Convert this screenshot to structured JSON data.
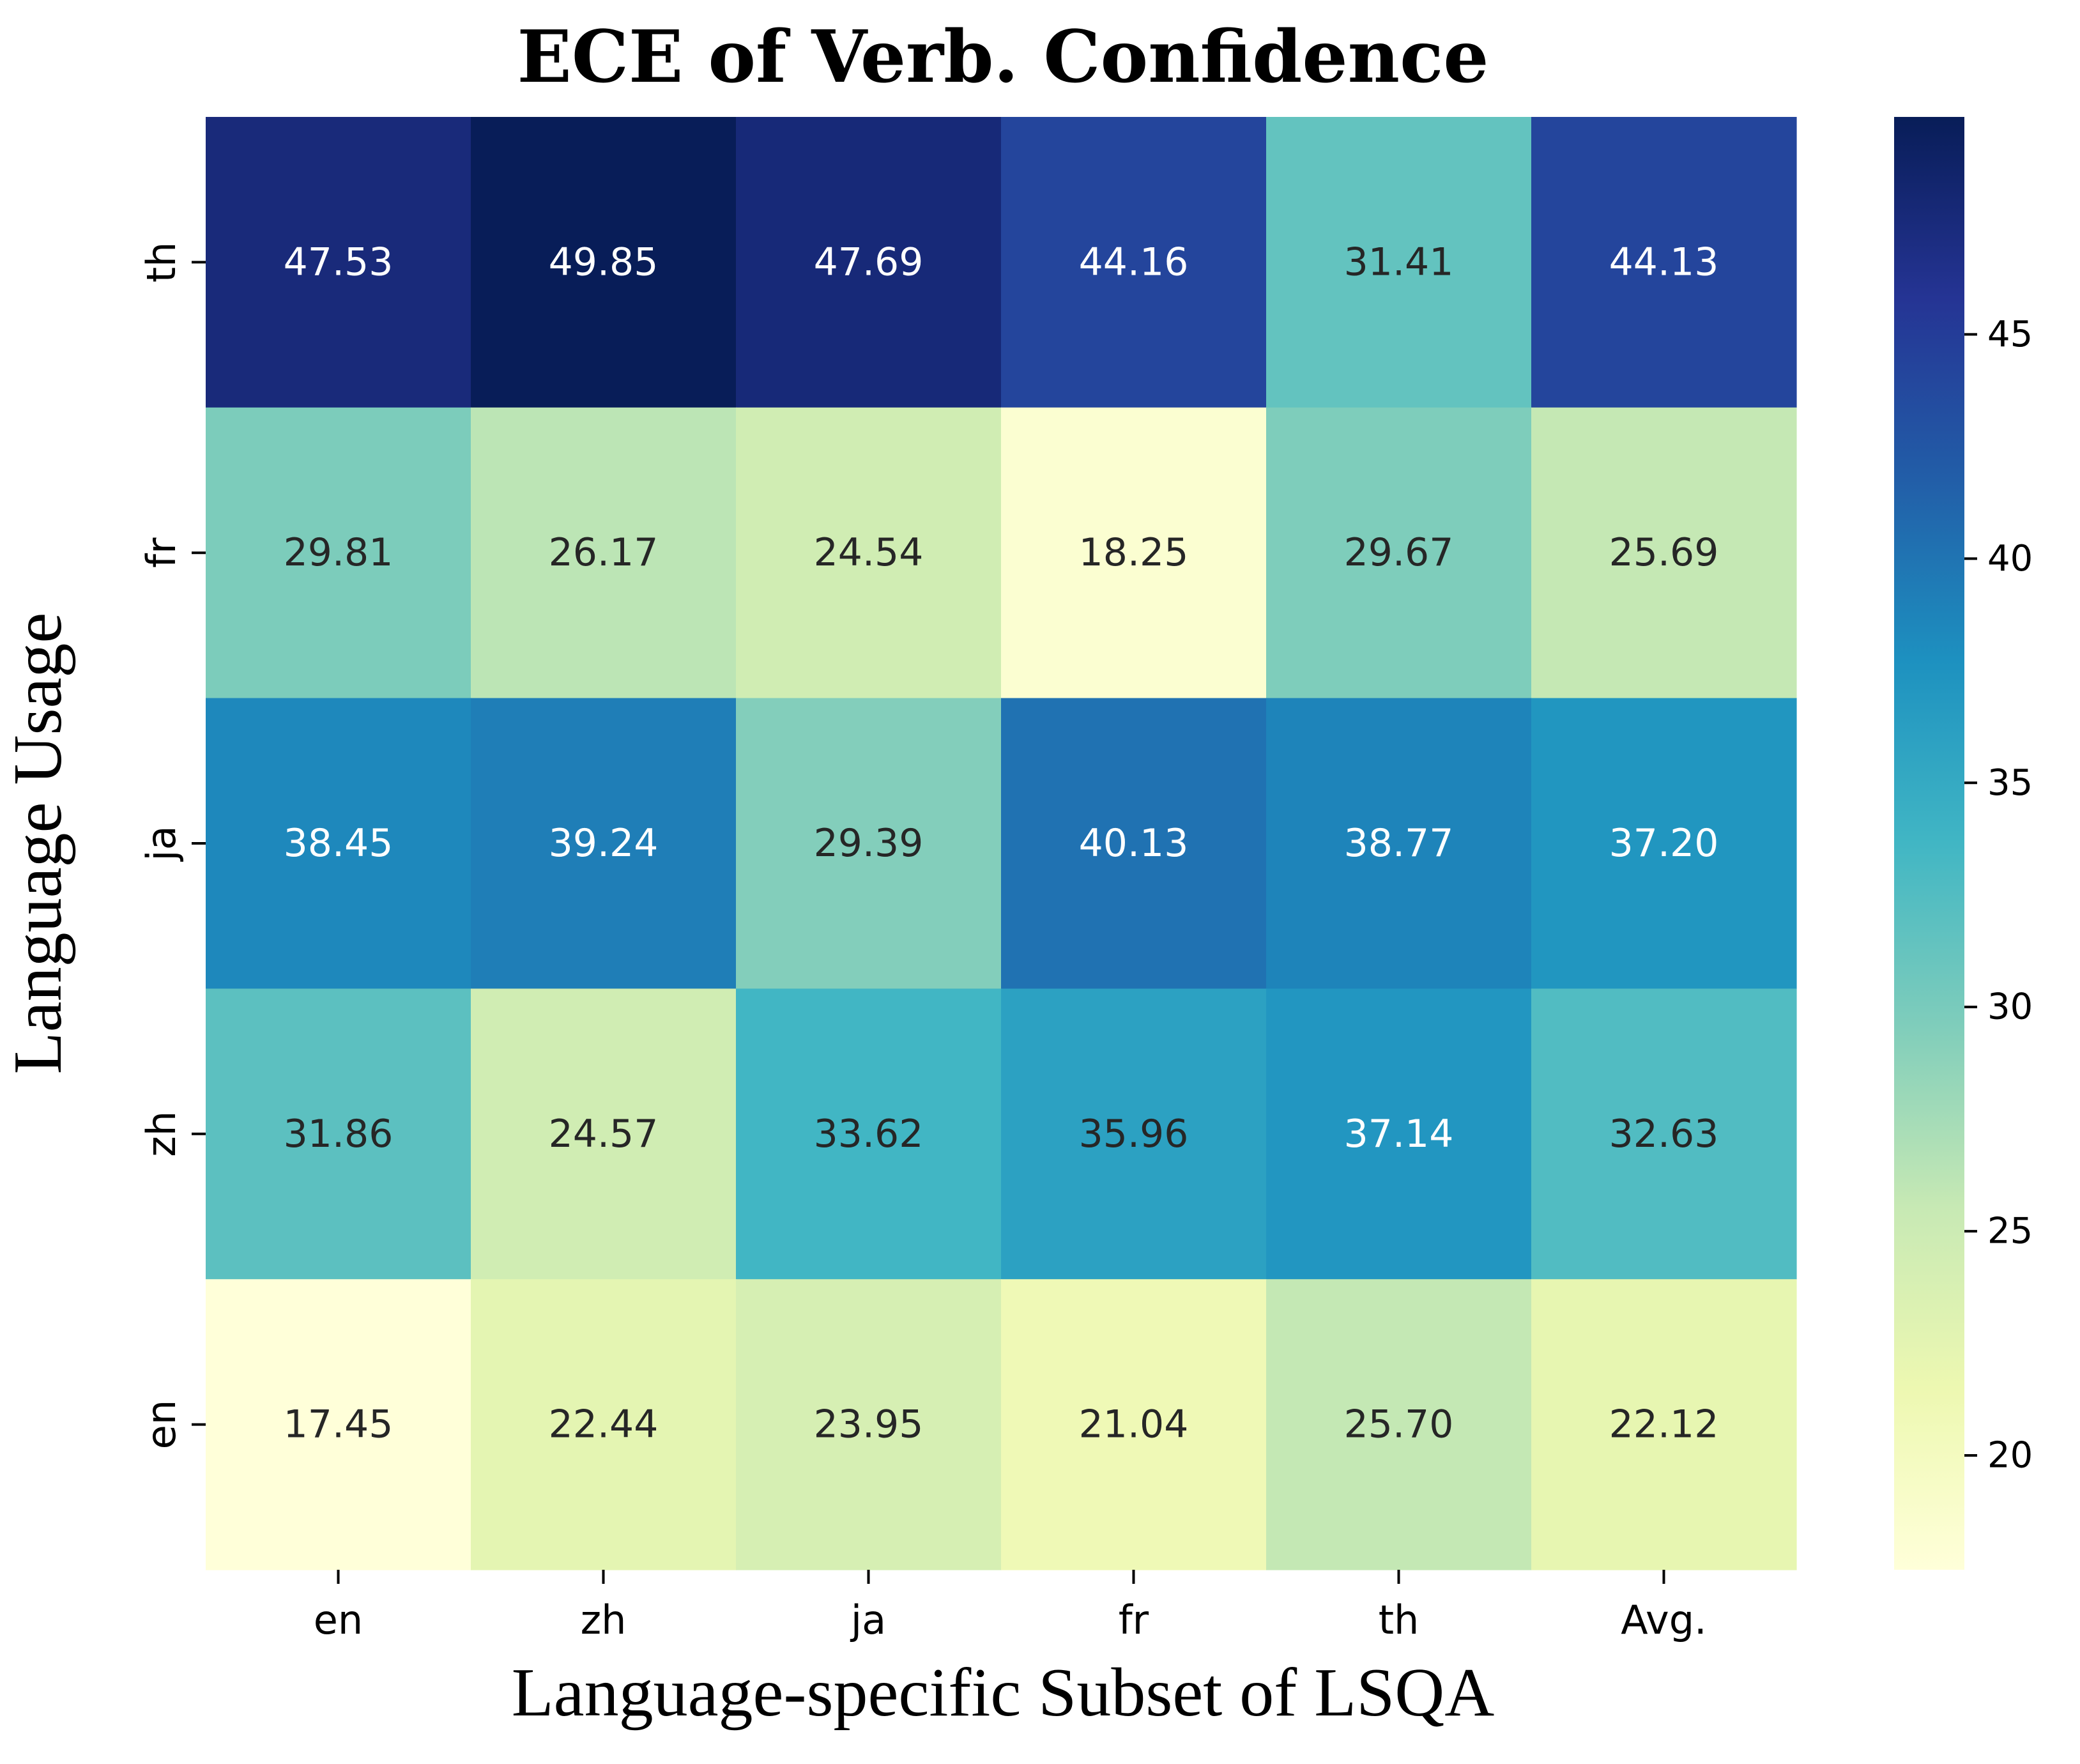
{
  "chart_data": {
    "type": "heatmap",
    "title": "ECE of Verb. Confidence",
    "xlabel": "Language-specific Subset of LSQA",
    "ylabel": "Language Usage",
    "x_categories": [
      "en",
      "zh",
      "ja",
      "fr",
      "th",
      "Avg."
    ],
    "y_categories": [
      "th",
      "fr",
      "ja",
      "zh",
      "en"
    ],
    "values": [
      [
        47.53,
        49.85,
        47.69,
        44.16,
        31.41,
        44.13
      ],
      [
        29.81,
        26.17,
        24.54,
        18.25,
        29.67,
        25.69
      ],
      [
        38.45,
        39.24,
        29.39,
        40.13,
        38.77,
        37.2
      ],
      [
        31.86,
        24.57,
        33.62,
        35.96,
        37.14,
        32.63
      ],
      [
        17.45,
        22.44,
        23.95,
        21.04,
        25.7,
        22.12
      ]
    ],
    "value_labels": [
      [
        "47.53",
        "49.85",
        "47.69",
        "44.16",
        "31.41",
        "44.13"
      ],
      [
        "29.81",
        "26.17",
        "24.54",
        "18.25",
        "29.67",
        "25.69"
      ],
      [
        "38.45",
        "39.24",
        "29.39",
        "40.13",
        "38.77",
        "37.20"
      ],
      [
        "31.86",
        "24.57",
        "33.62",
        "35.96",
        "37.14",
        "32.63"
      ],
      [
        "17.45",
        "22.44",
        "23.95",
        "21.04",
        "25.70",
        "22.12"
      ]
    ],
    "colormap": "YlGnBu",
    "colorbar": {
      "min": 17.45,
      "max": 49.85,
      "ticks": [
        20,
        25,
        30,
        35,
        40,
        45
      ],
      "tick_labels": [
        "20",
        "25",
        "30",
        "35",
        "40",
        "45"
      ]
    },
    "text_color_dark": "#262626",
    "text_color_light": "#ffffff"
  }
}
